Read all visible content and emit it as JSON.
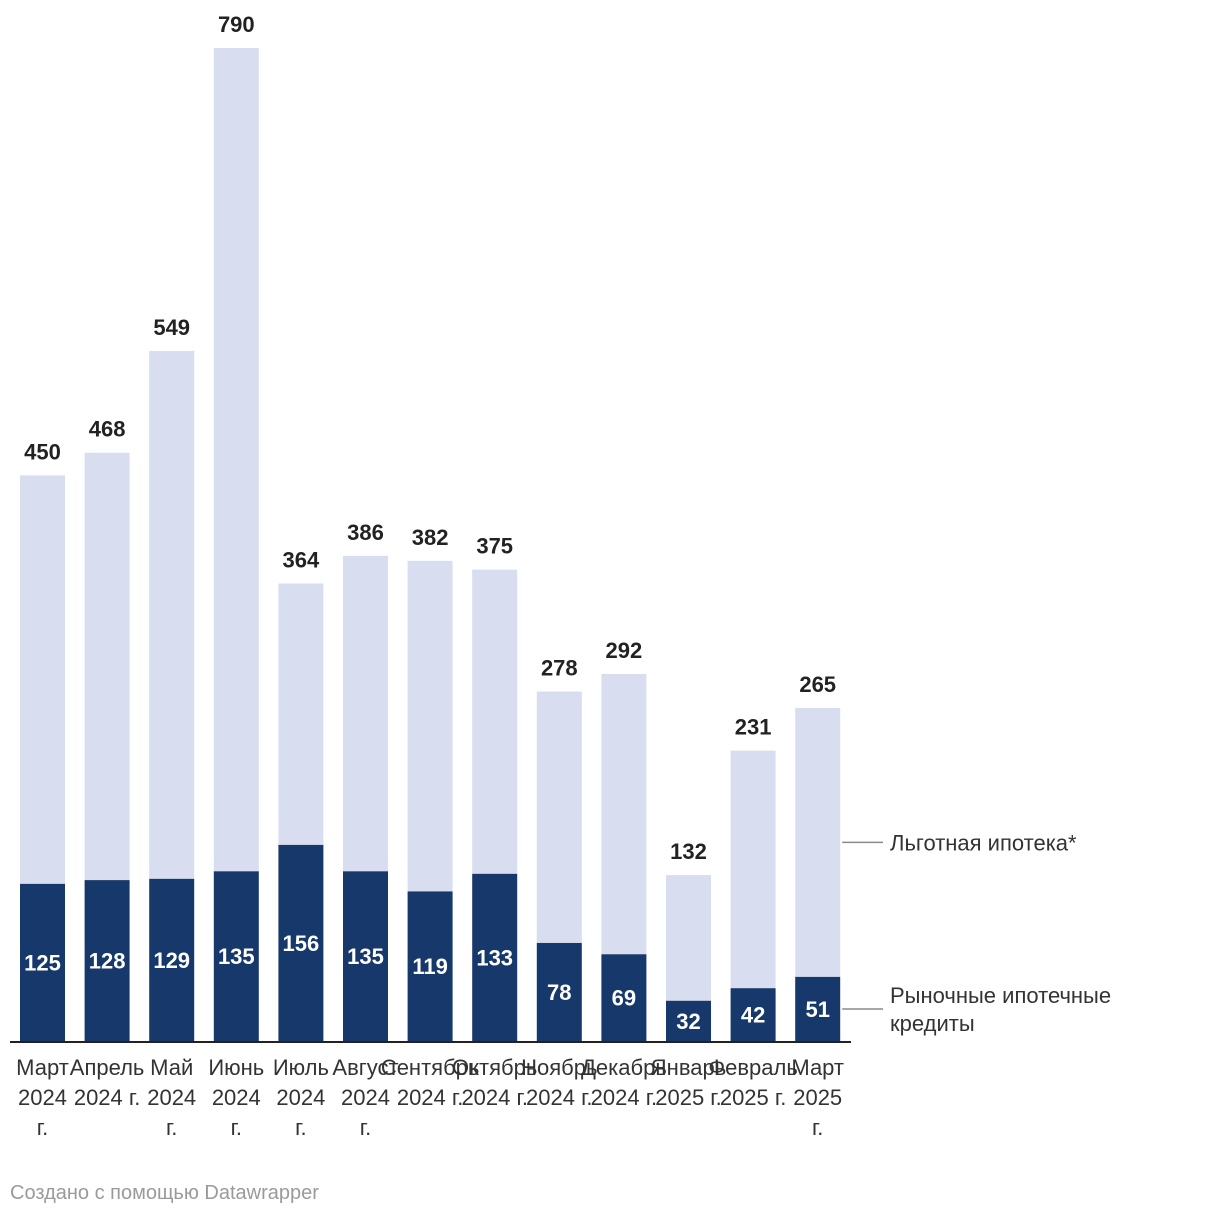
{
  "chart_data": {
    "type": "bar",
    "stacked": true,
    "title": "",
    "xlabel": "",
    "ylabel": "",
    "ylim": [
      0,
      790
    ],
    "categories": [
      [
        "Март",
        "2024",
        "г."
      ],
      [
        "Апрель",
        "2024 г."
      ],
      [
        "Май",
        "2024",
        "г."
      ],
      [
        "Июнь",
        "2024",
        "г."
      ],
      [
        "Июль",
        "2024",
        "г."
      ],
      [
        "Август",
        "2024",
        "г."
      ],
      [
        "Сентябрь",
        "2024 г."
      ],
      [
        "Октябрь",
        "2024 г."
      ],
      [
        "Ноябрь",
        "2024 г."
      ],
      [
        "Декабрь",
        "2024 г."
      ],
      [
        "Январь",
        "2025 г."
      ],
      [
        "Февраль",
        "2025 г."
      ],
      [
        "Март",
        "2025",
        "г."
      ]
    ],
    "totals": [
      450,
      468,
      549,
      790,
      364,
      386,
      382,
      375,
      278,
      292,
      132,
      231,
      265
    ],
    "series": [
      {
        "name": "Рыночные ипотечные кредиты",
        "legend_lines": [
          "Рыночные ипотечные",
          "кредиты"
        ],
        "color": "#17386a",
        "values": [
          125,
          128,
          129,
          135,
          156,
          135,
          119,
          133,
          78,
          69,
          32,
          42,
          51
        ]
      },
      {
        "name": "Льготная ипотека*",
        "legend_lines": [
          "Льготная ипотека*"
        ],
        "color": "#d8deef",
        "values": [
          325,
          340,
          420,
          655,
          208,
          251,
          263,
          242,
          200,
          223,
          100,
          189,
          214
        ]
      }
    ]
  },
  "footer": {
    "credit": "Создано с помощью Datawrapper"
  }
}
